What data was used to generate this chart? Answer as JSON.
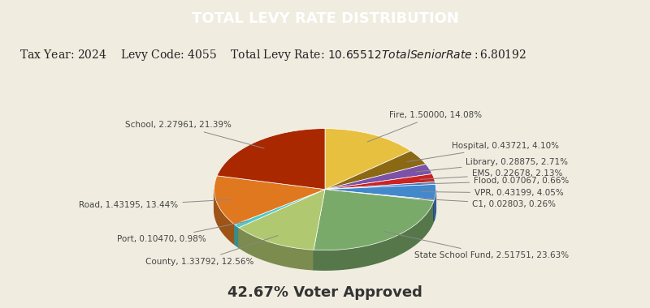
{
  "title": "TOTAL LEVY RATE DISTRIBUTION",
  "header_bg": "#1d5068",
  "header_text_color": "#ffffff",
  "info_bg": "#f0ece0",
  "tax_year": "2024",
  "levy_code": "4055",
  "total_levy_rate": "$10.65512",
  "total_senior_rate": "$6.80192",
  "footer_text": "42.67% Voter Approved",
  "slices": [
    {
      "label": "Fire",
      "value": 1.5,
      "pct": 14.08,
      "color": "#e8c040"
    },
    {
      "label": "Hospital",
      "value": 0.43721,
      "pct": 4.1,
      "color": "#8b6914"
    },
    {
      "label": "Library",
      "value": 0.28875,
      "pct": 2.71,
      "color": "#7b52a8"
    },
    {
      "label": "EMS",
      "value": 0.22678,
      "pct": 2.13,
      "color": "#cc2222"
    },
    {
      "label": "Flood",
      "value": 0.07067,
      "pct": 0.66,
      "color": "#3377cc"
    },
    {
      "label": "VPR",
      "value": 0.43199,
      "pct": 4.05,
      "color": "#4488cc"
    },
    {
      "label": "C1",
      "value": 0.02803,
      "pct": 0.26,
      "color": "#336688"
    },
    {
      "label": "State School Fund",
      "value": 2.51751,
      "pct": 23.63,
      "color": "#7aaa6a"
    },
    {
      "label": "County",
      "value": 1.33792,
      "pct": 12.56,
      "color": "#b0c870"
    },
    {
      "label": "Port",
      "value": 0.1047,
      "pct": 0.98,
      "color": "#50c8c8"
    },
    {
      "label": "Road",
      "value": 1.43195,
      "pct": 13.44,
      "color": "#e07820"
    },
    {
      "label": "School",
      "value": 2.27961,
      "pct": 21.39,
      "color": "#aa2800"
    }
  ],
  "label_fontsize": 7.5,
  "info_fontsize": 10
}
